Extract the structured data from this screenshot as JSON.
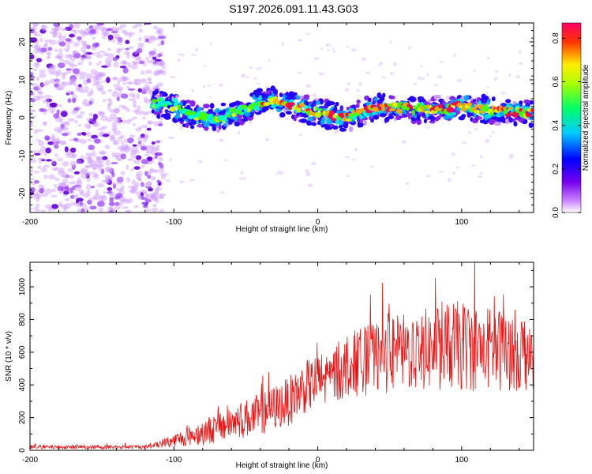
{
  "title": "S197.2026.091.11.43.G03",
  "chart_data": [
    {
      "type": "heatmap",
      "name": "spectrogram",
      "xlabel": "Height of straight line (km)",
      "ylabel": "Frequency (Hz)",
      "xlim": [
        -200,
        150
      ],
      "ylim": [
        -25,
        25
      ],
      "xticks": [
        -200,
        -100,
        0,
        100
      ],
      "yticks": [
        -20,
        -10,
        0,
        10,
        20
      ],
      "colorbar": {
        "label": "Normalized spectral amplitude",
        "range": [
          0,
          0.87
        ],
        "ticks": [
          0.0,
          0.2,
          0.4,
          0.6,
          0.8
        ],
        "colormap": [
          "#ffffff",
          "#9933ff",
          "#0000ff",
          "#00ffff",
          "#00ff00",
          "#ffff00",
          "#ff0000",
          "#ff0066"
        ]
      },
      "ridge": {
        "x": [
          -115,
          -100,
          -90,
          -80,
          -70,
          -60,
          -50,
          -40,
          -30,
          -20,
          -10,
          0,
          10,
          20,
          30,
          40,
          60,
          80,
          100,
          120,
          150
        ],
        "freq": [
          4,
          3,
          1,
          0,
          -0.5,
          1,
          2.5,
          4,
          4.5,
          3.5,
          2.5,
          1.5,
          0.5,
          0,
          1.5,
          2.5,
          2.5,
          2,
          3,
          2,
          1
        ]
      },
      "noise_region": [
        -200,
        -115
      ]
    },
    {
      "type": "line",
      "name": "snr",
      "xlabel": "Height of straight line (km)",
      "ylabel": "SNR (10 * v/v)",
      "xlim": [
        -200,
        150
      ],
      "ylim": [
        0,
        1150
      ],
      "xticks": [
        -200,
        -100,
        0,
        100
      ],
      "yticks": [
        0,
        200,
        400,
        600,
        800,
        1000
      ],
      "color": "#ee1111",
      "envelope": {
        "x": [
          -200,
          -120,
          -110,
          -100,
          -80,
          -60,
          -40,
          -20,
          -10,
          0,
          10,
          20,
          40,
          60,
          80,
          100,
          120,
          150
        ],
        "mean": [
          20,
          20,
          40,
          60,
          110,
          170,
          220,
          300,
          380,
          420,
          450,
          520,
          560,
          600,
          620,
          640,
          620,
          600
        ],
        "spread": [
          12,
          12,
          25,
          40,
          80,
          110,
          130,
          150,
          160,
          170,
          180,
          200,
          220,
          240,
          260,
          280,
          260,
          240
        ]
      }
    }
  ]
}
